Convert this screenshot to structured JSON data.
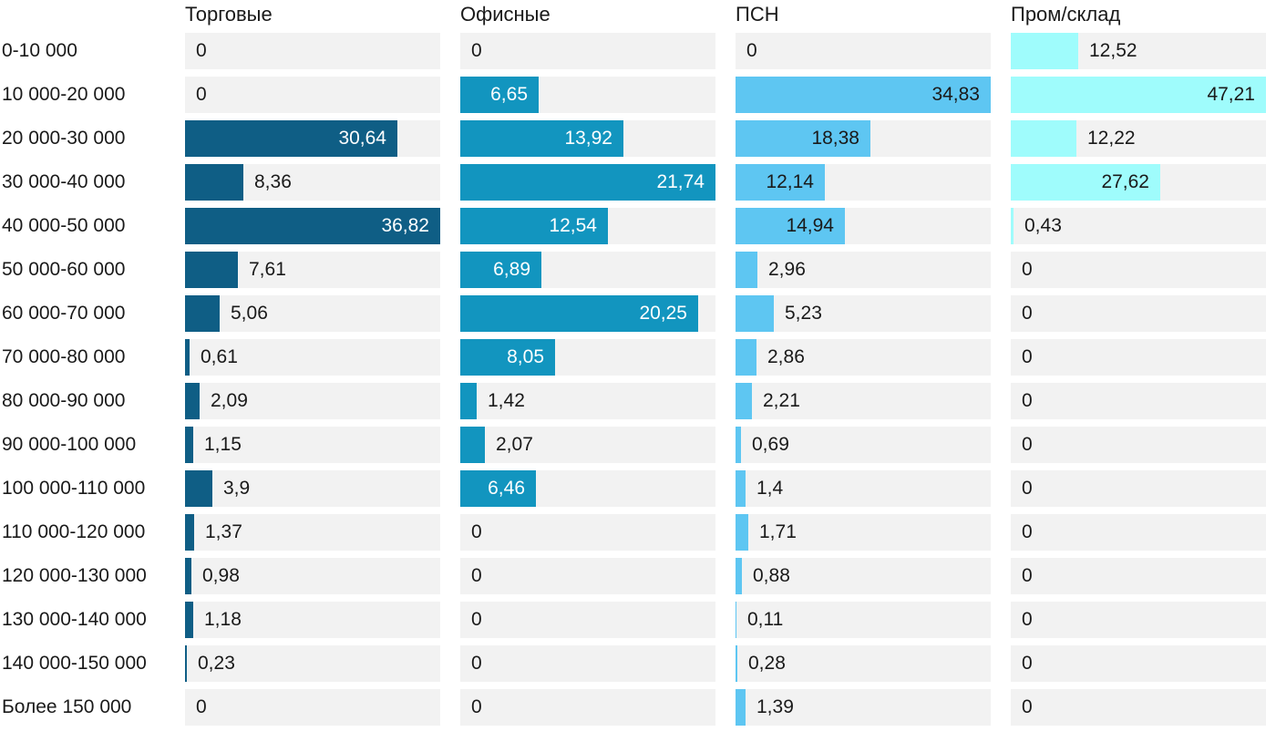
{
  "chart_data": {
    "type": "bar",
    "orientation": "horizontal",
    "title": "",
    "xlabel": "",
    "ylabel": "",
    "grid": false,
    "legend_position": "column-headers",
    "categories": [
      "0-10 000",
      "10 000-20 000",
      "20 000-30 000",
      "30 000-40 000",
      "40 000-50 000",
      "50 000-60 000",
      "60 000-70 000",
      "70 000-80 000",
      "80 000-90 000",
      "90 000-100 000",
      "100 000-110 000",
      "110 000-120 000",
      "120 000-130 000",
      "130 000-140 000",
      "140 000-150 000",
      "Более 150 000"
    ],
    "series": [
      {
        "name": "Торговые",
        "color": "#0f5e85",
        "label_color_inside": "#ffffff",
        "xlim": [
          0,
          36.82
        ],
        "values": [
          0,
          0,
          30.64,
          8.36,
          36.82,
          7.61,
          5.06,
          0.61,
          2.09,
          1.15,
          3.9,
          1.37,
          0.98,
          1.18,
          0.23,
          0
        ],
        "display_values": [
          "0",
          "0",
          "30,64",
          "8,36",
          "36,82",
          "7,61",
          "5,06",
          "0,61",
          "2,09",
          "1,15",
          "3,9",
          "1,37",
          "0,98",
          "1,18",
          "0,23",
          "0"
        ]
      },
      {
        "name": "Офисные",
        "color": "#1295bf",
        "label_color_inside": "#ffffff",
        "xlim": [
          0,
          21.74
        ],
        "values": [
          0,
          6.65,
          13.92,
          21.74,
          12.54,
          6.89,
          20.25,
          8.05,
          1.42,
          2.07,
          6.46,
          0,
          0,
          0,
          0,
          0
        ],
        "display_values": [
          "0",
          "6,65",
          "13,92",
          "21,74",
          "12,54",
          "6,89",
          "20,25",
          "8,05",
          "1,42",
          "2,07",
          "6,46",
          "0",
          "0",
          "0",
          "0",
          "0"
        ]
      },
      {
        "name": "ПСН",
        "color": "#5ec6f2",
        "label_color_inside": "#1a1a1a",
        "xlim": [
          0,
          34.83
        ],
        "values": [
          0,
          34.83,
          18.38,
          12.14,
          14.94,
          2.96,
          5.23,
          2.86,
          2.21,
          0.69,
          1.4,
          1.71,
          0.88,
          0.11,
          0.28,
          1.39
        ],
        "display_values": [
          "0",
          "34,83",
          "18,38",
          "12,14",
          "14,94",
          "2,96",
          "5,23",
          "2,86",
          "2,21",
          "0,69",
          "1,4",
          "1,71",
          "0,88",
          "0,11",
          "0,28",
          "1,39"
        ]
      },
      {
        "name": "Пром/склад",
        "color": "#9ffcfc",
        "label_color_inside": "#1a1a1a",
        "xlim": [
          0,
          47.21
        ],
        "values": [
          12.52,
          47.21,
          12.22,
          27.62,
          0.43,
          0,
          0,
          0,
          0,
          0,
          0,
          0,
          0,
          0,
          0,
          0
        ],
        "display_values": [
          "12,52",
          "47,21",
          "12,22",
          "27,62",
          "0,43",
          "0",
          "0",
          "0",
          "0",
          "0",
          "0",
          "0",
          "0",
          "0",
          "0",
          "0"
        ]
      }
    ],
    "layout": {
      "track_color": "#f2f2f2",
      "text_color": "#1a1a1a",
      "background": "#ffffff"
    }
  }
}
